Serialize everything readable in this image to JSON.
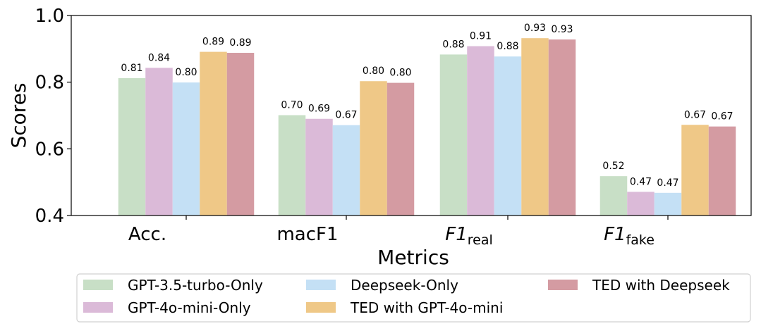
{
  "chart_data": {
    "type": "bar",
    "xlabel": "Metrics",
    "ylabel": "Scores",
    "ylim": [
      0.4,
      1.0
    ],
    "yticks": [
      "0.4",
      "0.6",
      "0.8",
      "1.0"
    ],
    "categories": [
      {
        "main": "Acc.",
        "sub": "",
        "italic": false
      },
      {
        "main": "macF1",
        "sub": "",
        "italic": false
      },
      {
        "main": "F1",
        "sub": "real",
        "italic": true
      },
      {
        "main": "F1",
        "sub": "fake",
        "italic": true
      }
    ],
    "series": [
      {
        "name": "GPT-3.5-turbo-Only",
        "color": "#c8dfc6",
        "values": [
          0.81,
          0.7,
          0.88,
          0.52
        ]
      },
      {
        "name": "GPT-4o-mini-Only",
        "color": "#dbbad8",
        "values": [
          0.84,
          0.69,
          0.91,
          0.47
        ]
      },
      {
        "name": "Deepseek-Only",
        "color": "#c4e0f5",
        "values": [
          0.8,
          0.67,
          0.88,
          0.47
        ]
      },
      {
        "name": "TED with GPT-4o-mini",
        "color": "#efc887",
        "values": [
          0.89,
          0.8,
          0.93,
          0.67
        ]
      },
      {
        "name": "TED with Deepseek",
        "color": "#d49ba2",
        "values": [
          0.89,
          0.8,
          0.93,
          0.67
        ]
      }
    ],
    "exact_heights": [
      [
        0.812,
        0.701,
        0.883,
        0.518
      ],
      [
        0.843,
        0.69,
        0.908,
        0.471
      ],
      [
        0.799,
        0.671,
        0.877,
        0.468
      ],
      [
        0.891,
        0.803,
        0.932,
        0.672
      ],
      [
        0.888,
        0.798,
        0.928,
        0.667
      ]
    ],
    "grid": false,
    "legend": "bottom"
  }
}
